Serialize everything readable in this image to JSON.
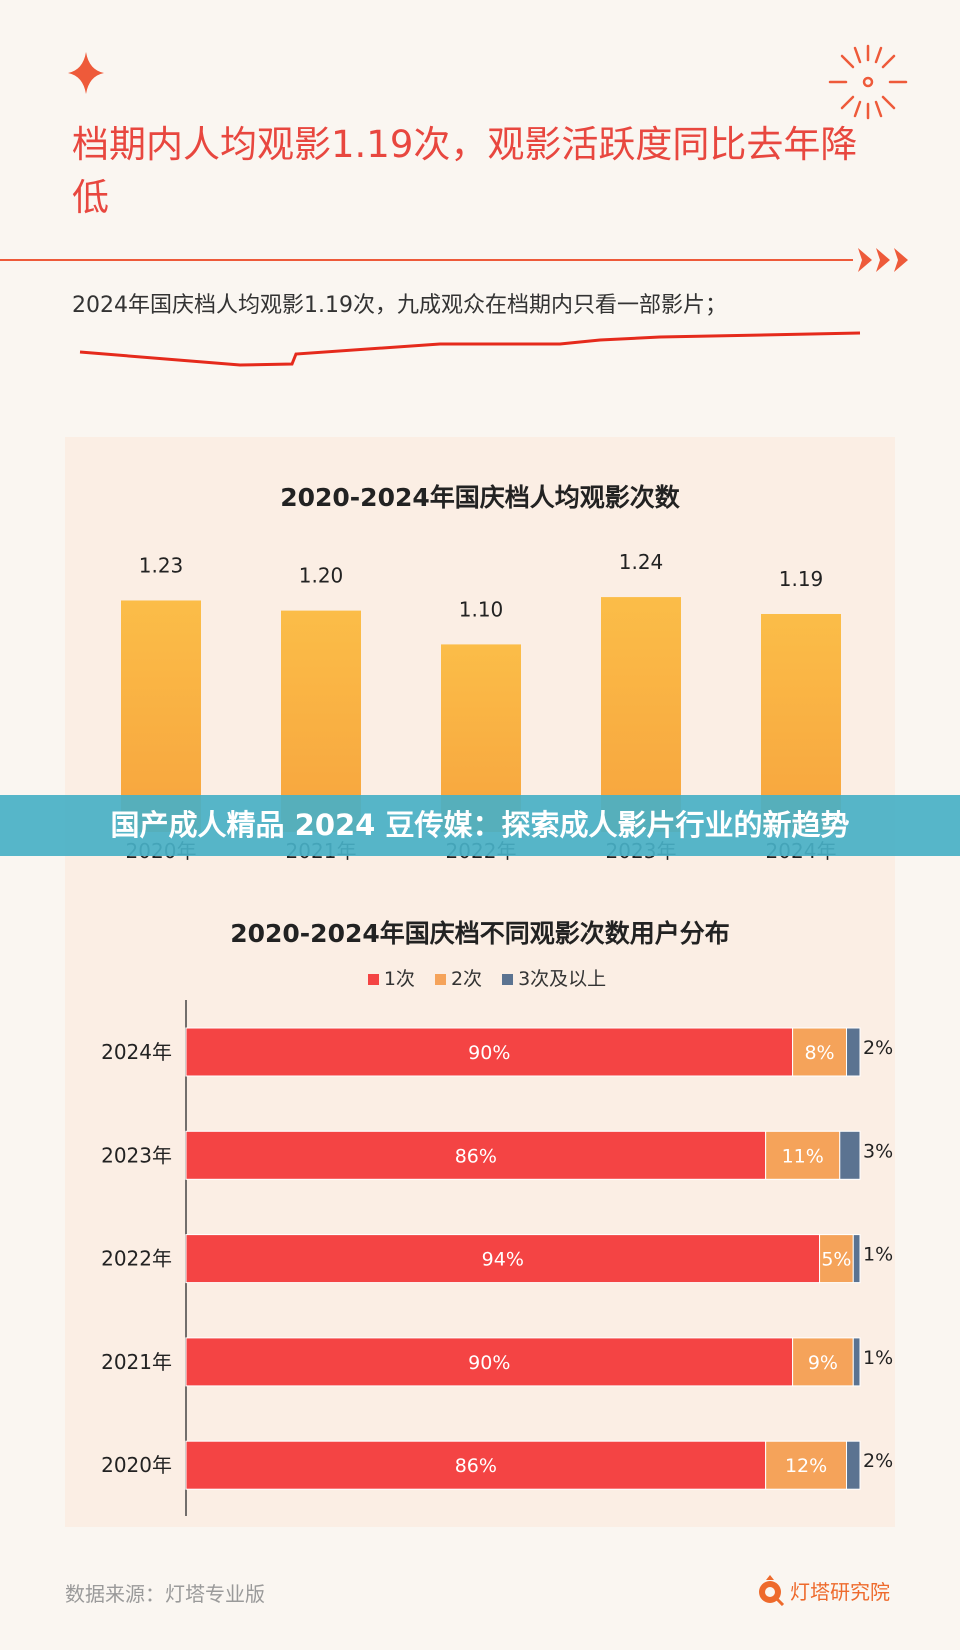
{
  "header": {
    "title": "档期内人均观影1.19次，观影活跃度同比去年降低",
    "subtitle": "2024年国庆档人均观影1.19次，九成观众在档期内只看一部影片；",
    "accent": "#e8473f"
  },
  "banner": {
    "text": "国产成人精品 2024 豆传媒：探索成人影片行业的新趋势",
    "color": "#48b0c6"
  },
  "chart_data": [
    {
      "type": "bar",
      "title": "2020-2024年国庆档人均观影次数",
      "categories": [
        "2020年",
        "2021年",
        "2022年",
        "2023年",
        "2024年"
      ],
      "values": [
        1.23,
        1.2,
        1.1,
        1.24,
        1.19
      ],
      "labels": [
        "1.23",
        "1.20",
        "1.10",
        "1.24",
        "1.19"
      ],
      "color": "#f9b445",
      "grid": false
    },
    {
      "type": "bar",
      "orientation": "horizontal-stacked",
      "title": "2020-2024年国庆档不同观影次数用户分布",
      "categories": [
        "2024年",
        "2023年",
        "2022年",
        "2021年",
        "2020年"
      ],
      "series": [
        {
          "name": "1次",
          "color": "#f44444",
          "values": [
            90,
            86,
            94,
            90,
            86
          ]
        },
        {
          "name": "2次",
          "color": "#f5a35a",
          "values": [
            8,
            11,
            5,
            9,
            12
          ]
        },
        {
          "name": "3次及以上",
          "color": "#5b7391",
          "values": [
            2,
            3,
            1,
            1,
            2
          ]
        }
      ],
      "unit": "%",
      "legend": "top"
    }
  ],
  "footer": {
    "source": "数据来源：灯塔专业版",
    "brand": "灯塔研究院"
  }
}
